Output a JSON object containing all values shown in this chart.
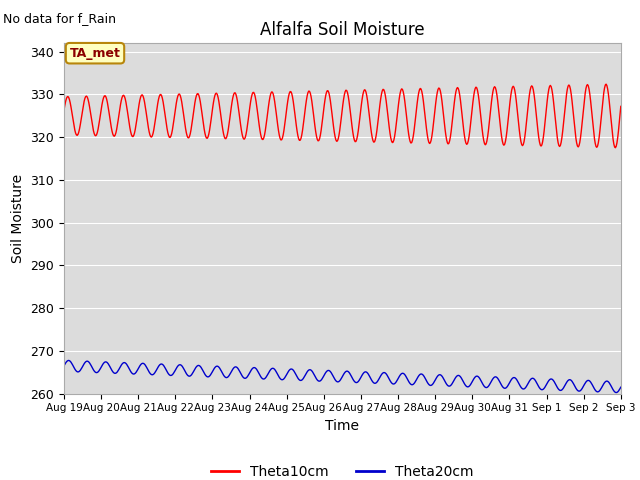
{
  "title": "Alfalfa Soil Moisture",
  "subtitle": "No data for f_Rain",
  "xlabel": "Time",
  "ylabel": "Soil Moisture",
  "ylim": [
    260,
    342
  ],
  "yticks": [
    260,
    270,
    280,
    290,
    300,
    310,
    320,
    330,
    340
  ],
  "bg_color": "#dcdcdc",
  "line1_color": "#ff0000",
  "line2_color": "#0000cc",
  "legend_label1": "Theta10cm",
  "legend_label2": "Theta20cm",
  "annotation_text": "TA_met",
  "annotation_bg": "#ffffc0",
  "annotation_border": "#b8860b",
  "x_tick_labels": [
    "Aug 19",
    "Aug 20",
    "Aug 21",
    "Aug 22",
    "Aug 23",
    "Aug 24",
    "Aug 25",
    "Aug 26",
    "Aug 27",
    "Aug 28",
    "Aug 29",
    "Aug 30",
    "Aug 31",
    "Sep 1",
    "Sep 2",
    "Sep 3"
  ]
}
